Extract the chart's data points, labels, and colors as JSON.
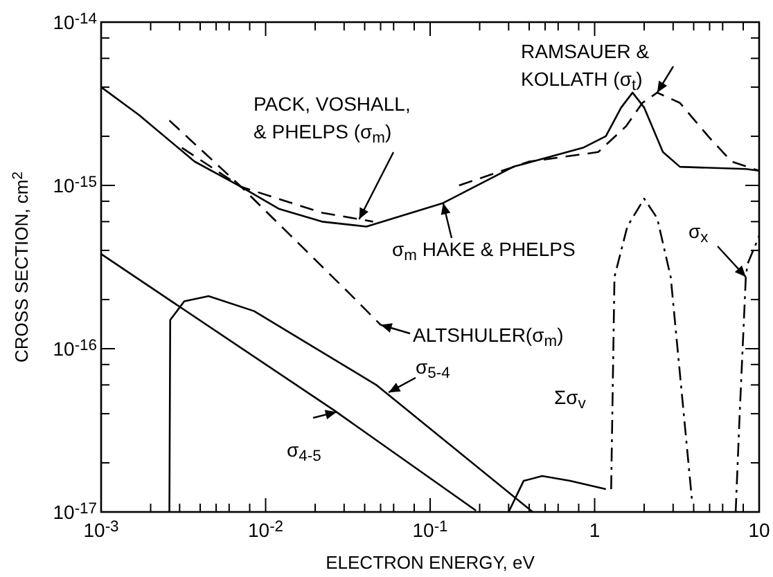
{
  "chart_data": {
    "type": "line",
    "log": "xy",
    "xlabel": "ELECTRON ENERGY, eV",
    "ylabel": "CROSS SECTION, cm$^{2}$",
    "xlim": [
      0.001,
      10
    ],
    "ylim": [
      1e-17,
      1e-14
    ],
    "xticks": [
      {
        "value": 0.001,
        "label": "10$^{-3}$"
      },
      {
        "value": 0.002,
        "label": null
      },
      {
        "value": 0.003,
        "label": null
      },
      {
        "value": 0.004,
        "label": null
      },
      {
        "value": 0.005,
        "label": null
      },
      {
        "value": 0.006,
        "label": null
      },
      {
        "value": 0.008,
        "label": null
      },
      {
        "value": 0.01,
        "label": "10$^{-2}$"
      },
      {
        "value": 0.02,
        "label": null
      },
      {
        "value": 0.03,
        "label": null
      },
      {
        "value": 0.04,
        "label": null
      },
      {
        "value": 0.05,
        "label": null
      },
      {
        "value": 0.06,
        "label": null
      },
      {
        "value": 0.08,
        "label": null
      },
      {
        "value": 0.1,
        "label": "10$^{-1}$"
      },
      {
        "value": 0.2,
        "label": null
      },
      {
        "value": 0.3,
        "label": null
      },
      {
        "value": 0.4,
        "label": null
      },
      {
        "value": 0.5,
        "label": null
      },
      {
        "value": 0.6,
        "label": null
      },
      {
        "value": 0.8,
        "label": null
      },
      {
        "value": 1,
        "label": "1"
      },
      {
        "value": 2,
        "label": null
      },
      {
        "value": 3,
        "label": null
      },
      {
        "value": 4,
        "label": null
      },
      {
        "value": 5,
        "label": null
      },
      {
        "value": 6,
        "label": null
      },
      {
        "value": 8,
        "label": null
      },
      {
        "value": 10,
        "label": "10"
      }
    ],
    "yticks": [
      {
        "value": 1e-17,
        "label": "10$^{-17}$"
      },
      {
        "value": 2e-17,
        "label": null
      },
      {
        "value": 4e-17,
        "label": null
      },
      {
        "value": 6e-17,
        "label": null
      },
      {
        "value": 8e-17,
        "label": null
      },
      {
        "value": 1e-16,
        "label": "10$^{-16}$"
      },
      {
        "value": 2e-16,
        "label": null
      },
      {
        "value": 4e-16,
        "label": null
      },
      {
        "value": 6e-16,
        "label": null
      },
      {
        "value": 8e-16,
        "label": null
      },
      {
        "value": 1e-15,
        "label": "10$^{-15}$"
      },
      {
        "value": 2e-15,
        "label": null
      },
      {
        "value": 4e-15,
        "label": null
      },
      {
        "value": 6e-15,
        "label": null
      },
      {
        "value": 8e-15,
        "label": null
      },
      {
        "value": 1e-14,
        "label": "10$^{-14}$"
      }
    ],
    "annotations": [
      {
        "text": "σ$_{m}$ HAKE & PHELPS",
        "x": 0.12,
        "y": 7.8e-16
      },
      {
        "text": "PACK, VOSHALL,\n& PHELPS (σ$_{m}$)",
        "x": 0.037,
        "y": 6.2e-16
      },
      {
        "text": "RAMSAUER &\nKOLLATH (σ$_{t}$)",
        "x": 2.4,
        "y": 3.7e-15
      },
      {
        "text": "ALTSHULER(σ$_{m}$)",
        "x": 0.05,
        "y": 1.4e-16
      },
      {
        "text": "σ$_{5-4}$",
        "x": 0.056,
        "y": 5.4e-17
      },
      {
        "text": "σ$_{4-5}$",
        "x": 0.027,
        "y": 4.1e-17
      },
      "Σσ$_{v}$",
      {
        "text": "σ$_{x}$",
        "x": 8.3,
        "y": 2.75e-16
      }
    ],
    "series": [
      {
        "color": "#000000",
        "line_style": "solid",
        "x": [
          0.001,
          0.0017,
          0.0037,
          0.0071,
          0.012,
          0.022,
          0.041,
          0.12,
          0.32,
          0.85,
          1.17,
          1.45,
          1.7,
          2.0,
          2.6,
          3.3,
          8.3,
          10
        ],
        "values": [
          4e-15,
          2.7e-15,
          1.4e-15,
          9.8e-16,
          7.2e-16,
          6e-16,
          5.6e-16,
          7.8e-16,
          1.3e-15,
          1.7e-15,
          2e-15,
          3e-15,
          3.7e-15,
          3e-15,
          1.6e-15,
          1.3e-15,
          1.26e-15,
          1.23e-15
        ]
      },
      {
        "color": "#000000",
        "line_style": "dashed",
        "x": [
          0.0031,
          0.0071,
          0.022,
          0.045
        ],
        "values": [
          1.7e-15,
          9.8e-16,
          6.8e-16,
          6e-16
        ]
      },
      {
        "color": "#000000",
        "line_style": "dashed",
        "x": [
          0.15,
          0.4,
          1.05,
          1.55,
          1.95,
          2.4,
          3.3,
          4.9,
          6.8,
          10
        ],
        "values": [
          1e-15,
          1.4e-15,
          1.6e-15,
          2.3e-15,
          3.2e-15,
          3.7e-15,
          3.2e-15,
          2e-15,
          1.4e-15,
          1.23e-15
        ]
      },
      {
        "color": "#000000",
        "line_style": "dashed",
        "x": [
          0.0026,
          0.0071,
          0.032,
          0.05
        ],
        "values": [
          2.5e-15,
          9.8e-16,
          2.2e-16,
          1.4e-16
        ]
      },
      {
        "color": "#000000",
        "line_style": "solid",
        "x": [
          0.001,
          0.026,
          0.19
        ],
        "values": [
          3.8e-16,
          4.2e-17,
          1.02e-17
        ]
      },
      {
        "color": "#000000",
        "line_style": "solid",
        "x": [
          0.0026,
          0.00263,
          0.0032,
          0.0045,
          0.0085,
          0.047,
          0.42
        ],
        "values": [
          1e-17,
          1.5e-16,
          1.95e-16,
          2.1e-16,
          1.7e-16,
          6e-17,
          1e-17
        ]
      },
      {
        "color": "#000000",
        "line_style": "solid",
        "x": [
          0.3,
          0.37,
          0.48,
          0.71,
          1.17
        ],
        "values": [
          1e-17,
          1.55e-17,
          1.66e-17,
          1.55e-17,
          1.38e-17
        ]
      },
      {
        "color": "#000000",
        "line_style": "dashdot",
        "x": [
          1.26,
          1.32,
          1.58,
          2.0,
          2.4,
          2.9,
          3.9
        ],
        "values": [
          1.38e-17,
          2.75e-16,
          5.6e-16,
          8.3e-16,
          6.3e-16,
          2.75e-16,
          1.2e-17
        ]
      },
      {
        "color": "#000000",
        "line_style": "dashdot",
        "x": [
          7.2,
          7.6,
          8.3,
          8.5,
          10
        ],
        "values": [
          1e-17,
          3.8e-17,
          2.75e-16,
          3.3e-16,
          4.9e-16
        ]
      }
    ]
  }
}
